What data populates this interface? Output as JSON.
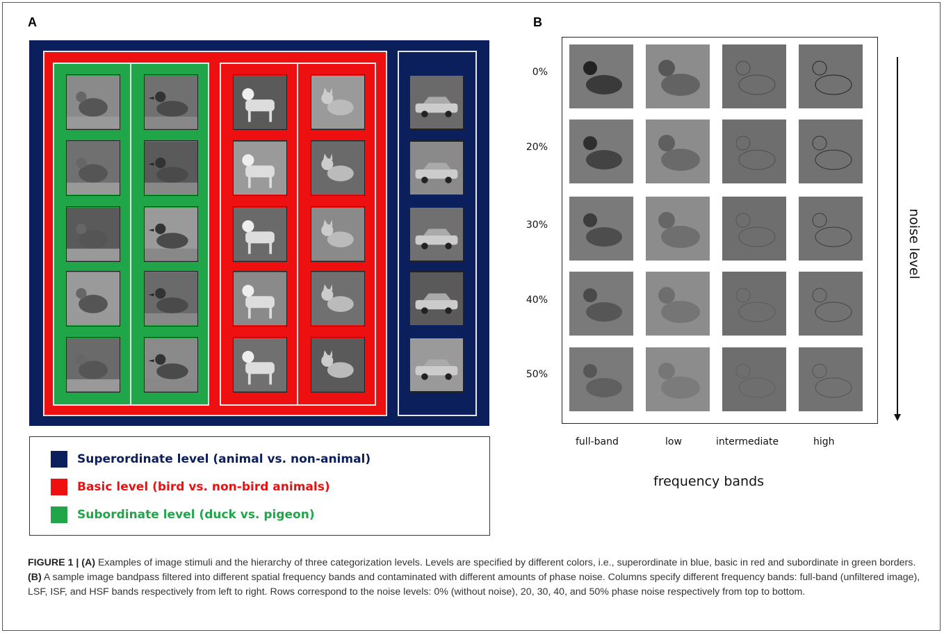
{
  "panel_a": {
    "letter": "A"
  },
  "panel_b": {
    "letter": "B",
    "noise_levels": [
      "0%",
      "20%",
      "30%",
      "40%",
      "50%"
    ],
    "frequency_bands": [
      "full-band",
      "low",
      "intermediate",
      "high"
    ],
    "x_title": "frequency bands",
    "y_title": "noise level"
  },
  "legend": {
    "items": [
      {
        "label": "Superordinate level  (animal vs. non-animal)",
        "color": "#0b1f5c"
      },
      {
        "label": "Basic level (bird vs. non-bird animals)",
        "color": "#ee1010"
      },
      {
        "label": "Subordinate level (duck vs. pigeon)",
        "color": "#20a548"
      }
    ]
  },
  "caption": {
    "label": "FIGURE 1 |",
    "part_a_tag": "(A)",
    "part_a_text": " Examples of image stimuli and the hierarchy of three categorization levels. Levels are specified by different colors, i.e., superordinate in blue, basic in red and subordinate in green borders. ",
    "part_b_tag": "(B)",
    "part_b_text": " A sample image bandpass filtered into different spatial frequency bands and contaminated with different amounts of phase noise. Columns specify different frequency bands: full-band (unfiltered image), LSF, ISF, and HSF bands respectively from left to right. Rows correspond to the noise levels: 0% (without noise), 20, 30, 40, and 50% phase noise respectively from top to bottom."
  },
  "stimuli": {
    "columns": [
      {
        "category": "pigeon-icon"
      },
      {
        "category": "duck-icon"
      },
      {
        "category": "dog-icon"
      },
      {
        "category": "cat-icon"
      },
      {
        "category": "car-icon"
      }
    ]
  }
}
